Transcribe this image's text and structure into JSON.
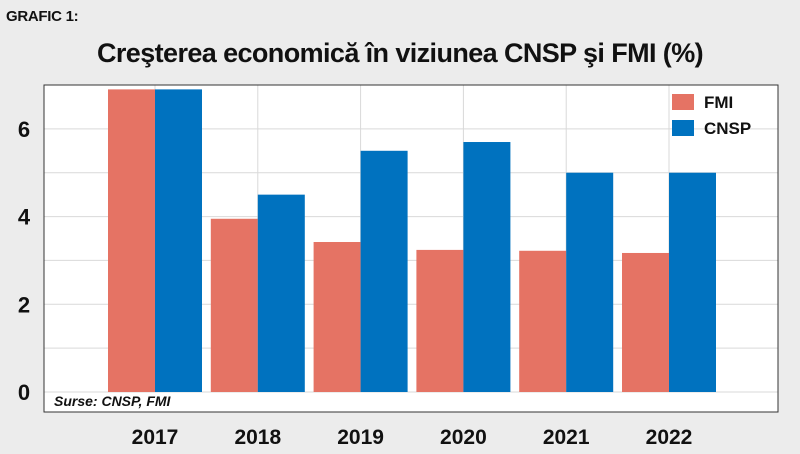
{
  "header": {
    "tag": "GRAFIC 1:",
    "title": "Creşterea economică în viziunea CNSP şi FMI (%)"
  },
  "source_note": "Surse: CNSP, FMI",
  "colors": {
    "FMI": "#e57364",
    "CNSP": "#0072bf",
    "background": "#ececec",
    "plot_bg": "#ffffff",
    "grid": "#d9d9d9"
  },
  "chart_data": {
    "type": "bar",
    "categories": [
      "2017",
      "2018",
      "2019",
      "2020",
      "2021",
      "2022"
    ],
    "series": [
      {
        "name": "FMI",
        "values": [
          6.9,
          3.95,
          3.42,
          3.24,
          3.22,
          3.17
        ]
      },
      {
        "name": "CNSP",
        "values": [
          6.9,
          4.5,
          5.5,
          5.7,
          5.0,
          5.0
        ]
      }
    ],
    "yticks": [
      "0",
      "2",
      "4",
      "6"
    ],
    "ylim": [
      0,
      7
    ],
    "grid": true,
    "legend_position": "top-right"
  }
}
